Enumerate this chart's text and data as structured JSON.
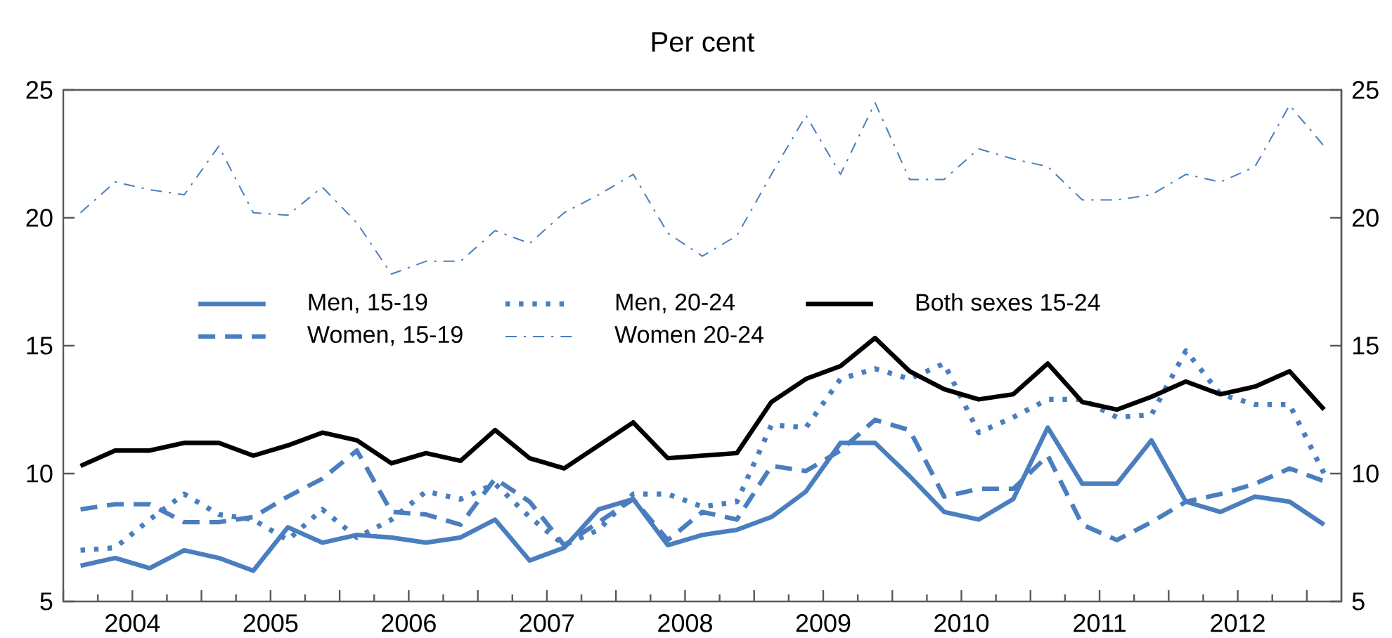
{
  "chart_data": {
    "type": "line",
    "title": "Per cent",
    "x": [
      2004.125,
      2004.375,
      2004.625,
      2004.875,
      2005.125,
      2005.375,
      2005.625,
      2005.875,
      2006.125,
      2006.375,
      2006.625,
      2006.875,
      2007.125,
      2007.375,
      2007.625,
      2007.875,
      2008.125,
      2008.375,
      2008.625,
      2008.875,
      2009.125,
      2009.375,
      2009.625,
      2009.875,
      2010.125,
      2010.375,
      2010.625,
      2010.875,
      2011.125,
      2011.375,
      2011.625,
      2011.875,
      2012.125,
      2012.375,
      2012.625,
      2012.875,
      2013.125
    ],
    "series": [
      {
        "name": "Men, 15-19",
        "color": "#4a7ebf",
        "line_style": "solid",
        "values": [
          6.4,
          6.7,
          6.3,
          7.0,
          6.7,
          6.2,
          7.9,
          7.3,
          7.6,
          7.5,
          7.3,
          7.5,
          8.2,
          6.6,
          7.1,
          8.6,
          9.0,
          7.2,
          7.6,
          7.8,
          8.3,
          9.3,
          11.2,
          11.2,
          9.9,
          8.5,
          8.2,
          9.0,
          11.8,
          9.6,
          9.6,
          11.3,
          8.9,
          8.5,
          9.1,
          8.9,
          8.0
        ]
      },
      {
        "name": "Men, 20-24",
        "color": "#4a7ebf",
        "line_style": "dotted",
        "values": [
          7.0,
          7.1,
          8.2,
          9.2,
          8.4,
          8.2,
          7.4,
          8.6,
          7.5,
          8.2,
          9.3,
          9.0,
          9.6,
          8.3,
          7.2,
          7.8,
          9.2,
          9.2,
          8.7,
          8.9,
          11.9,
          11.8,
          13.7,
          14.1,
          13.7,
          14.3,
          11.6,
          12.2,
          12.9,
          12.9,
          12.2,
          12.3,
          14.8,
          13.1,
          12.7,
          12.7,
          10.0
        ]
      },
      {
        "name": "Both sexes 15-24",
        "color": "#000000",
        "line_style": "solid",
        "values": [
          10.3,
          10.9,
          10.9,
          11.2,
          11.2,
          10.7,
          11.1,
          11.6,
          11.3,
          10.4,
          10.8,
          10.5,
          11.7,
          10.6,
          10.2,
          11.1,
          12.0,
          10.6,
          10.7,
          10.8,
          12.8,
          13.7,
          14.2,
          15.3,
          14.0,
          13.3,
          12.9,
          13.1,
          14.3,
          12.8,
          12.5,
          13.0,
          13.6,
          13.1,
          13.4,
          14.0,
          12.5
        ]
      },
      {
        "name": "Women, 15-19",
        "color": "#4a7ebf",
        "line_style": "dashed",
        "values": [
          8.6,
          8.8,
          8.8,
          8.1,
          8.1,
          8.3,
          9.1,
          9.8,
          10.9,
          8.5,
          8.4,
          8.0,
          9.8,
          8.9,
          7.2,
          8.1,
          9.0,
          7.4,
          8.5,
          8.2,
          10.3,
          10.1,
          10.9,
          12.1,
          11.7,
          9.1,
          9.4,
          9.4,
          10.7,
          8.0,
          7.4,
          8.1,
          8.9,
          9.2,
          9.6,
          10.2,
          9.7
        ]
      },
      {
        "name": "Women 20-24",
        "color": "#4a7ebf",
        "line_style": "dashdot",
        "values": [
          20.2,
          21.4,
          21.1,
          20.9,
          22.8,
          20.2,
          20.1,
          21.2,
          19.8,
          17.8,
          18.3,
          18.3,
          19.5,
          19.0,
          20.2,
          20.9,
          21.7,
          19.4,
          18.5,
          19.3,
          21.7,
          24.0,
          21.7,
          24.5,
          21.5,
          21.5,
          22.7,
          22.3,
          22.0,
          20.7,
          20.7,
          20.9,
          21.7,
          21.4,
          22.0,
          24.4,
          22.8
        ]
      }
    ],
    "xlim": [
      2004,
      2013.25
    ],
    "xticks": [
      {
        "value": 2004,
        "label": null
      },
      {
        "value": 2004.5,
        "label": "2004"
      },
      {
        "value": 2005,
        "label": null
      },
      {
        "value": 2005.5,
        "label": "2005"
      },
      {
        "value": 2006,
        "label": null
      },
      {
        "value": 2006.5,
        "label": "2006"
      },
      {
        "value": 2007,
        "label": null
      },
      {
        "value": 2007.5,
        "label": "2007"
      },
      {
        "value": 2008,
        "label": null
      },
      {
        "value": 2008.5,
        "label": "2008"
      },
      {
        "value": 2009,
        "label": null
      },
      {
        "value": 2009.5,
        "label": "2009"
      },
      {
        "value": 2010,
        "label": null
      },
      {
        "value": 2010.5,
        "label": "2010"
      },
      {
        "value": 2011,
        "label": null
      },
      {
        "value": 2011.5,
        "label": "2011"
      },
      {
        "value": 2012,
        "label": null
      },
      {
        "value": 2012.5,
        "label": "2012"
      },
      {
        "value": 2013,
        "label": null
      }
    ],
    "ylim": [
      5,
      25
    ],
    "yticks": [
      5,
      10,
      15,
      20,
      25
    ],
    "y2lim": [
      5,
      25
    ],
    "y2ticks": [
      5,
      10,
      15,
      20,
      25
    ],
    "grid": false,
    "legend": "center",
    "marker": "none"
  }
}
